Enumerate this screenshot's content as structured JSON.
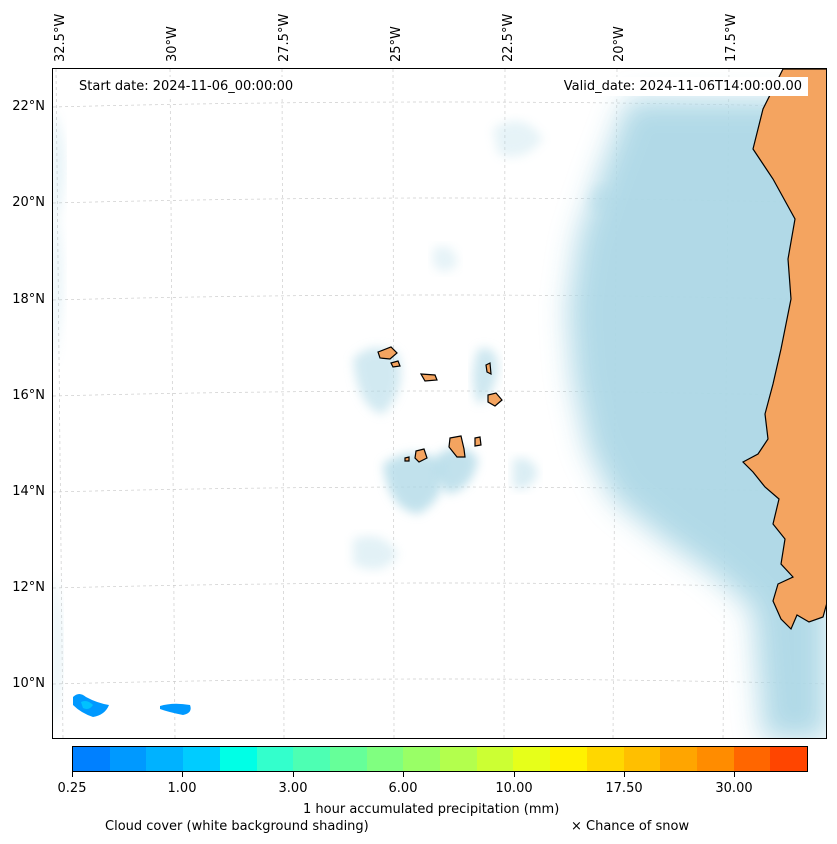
{
  "map": {
    "top_labels": [
      "32.5°W",
      "30°W",
      "27.5°W",
      "25°W",
      "22.5°W",
      "20°W",
      "17.5°W"
    ],
    "lat_labels": [
      "22°N",
      "20°N",
      "18°N",
      "16°N",
      "14°N",
      "12°N",
      "10°N"
    ],
    "start_date": "Start date: 2024-11-06_00:00:00",
    "valid_date": "Valid_date: 2024-11-06T14:00:00.00",
    "land_color": "#f4a460",
    "cloud_color": "#add8e6",
    "precip_color": "#0080ff"
  },
  "colorbar": {
    "colors": [
      "#0080ff",
      "#0099ff",
      "#00b2ff",
      "#00ccff",
      "#00ffe6",
      "#33ffcc",
      "#4dffb3",
      "#66ff99",
      "#80ff80",
      "#99ff66",
      "#b3ff4d",
      "#ccff33",
      "#e6ff1a",
      "#fff200",
      "#ffd700",
      "#ffbf00",
      "#ffa500",
      "#ff8c00",
      "#ff6600",
      "#ff4500"
    ],
    "tick_labels": [
      "0.25",
      "1.00",
      "3.00",
      "6.00",
      "10.00",
      "17.50",
      "30.00"
    ],
    "label": "1 hour accumulated precipitation (mm)"
  },
  "footer": {
    "cloud_cover": "Cloud cover (white background shading)",
    "snow": "× Chance of snow"
  }
}
